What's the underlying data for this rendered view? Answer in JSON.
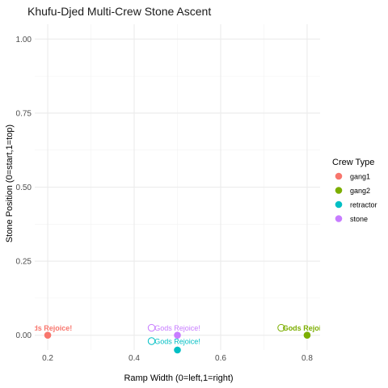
{
  "chart_data": {
    "type": "scatter",
    "title": "Khufu-Djed Multi-Crew Stone Ascent",
    "xlabel": "Ramp Width (0=left,1=right)",
    "ylabel": "Stone Position (0=start,1=top)",
    "xlim": [
      0.17,
      0.83
    ],
    "ylim": [
      -0.05,
      1.05
    ],
    "x_ticks": [
      0.2,
      0.4,
      0.6,
      0.8
    ],
    "x_tick_labels": [
      "0.2",
      "0.4",
      "0.6",
      "0.8"
    ],
    "y_ticks": [
      0,
      0.25,
      0.5,
      0.75,
      1.0
    ],
    "y_tick_labels": [
      "0.00",
      "0.25",
      "0.50",
      "0.75",
      "1.00"
    ],
    "grid": true,
    "legend": {
      "title": "Crew Type",
      "position": "right"
    },
    "series": [
      {
        "name": "gang1",
        "color": "#F8766D",
        "points": [
          {
            "x": 0.2,
            "y": 0.0
          }
        ],
        "annotation": {
          "text": "Gods Rejoice!",
          "x": 0.2,
          "y": 0.025,
          "bold": true
        }
      },
      {
        "name": "gang2",
        "color": "#7CAE00",
        "points": [
          {
            "x": 0.8,
            "y": 0.0
          }
        ],
        "annotation": {
          "text": "Gods Rejoice!",
          "x": 0.8,
          "y": 0.025,
          "bold": true
        }
      },
      {
        "name": "retractor",
        "color": "#00BFC4",
        "points": [
          {
            "x": 0.5,
            "y": -0.05
          }
        ],
        "annotation": {
          "text": "Gods Rejoice!",
          "x": 0.5,
          "y": -0.02,
          "bold": false
        }
      },
      {
        "name": "stone",
        "color": "#C77CFF",
        "points": [
          {
            "x": 0.5,
            "y": 0.0
          }
        ],
        "annotation": {
          "text": "Gods Rejoice!",
          "x": 0.5,
          "y": 0.025,
          "bold": false
        }
      }
    ]
  }
}
